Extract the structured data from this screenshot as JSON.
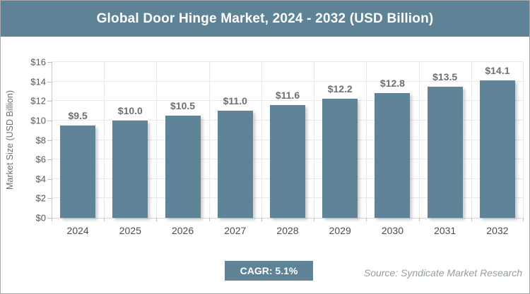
{
  "header": {
    "title": "Global Door Hinge Market, 2024 - 2032 (USD Billion)"
  },
  "chart_data": {
    "type": "bar",
    "title": "Global Door Hinge Market, 2024 - 2032 (USD Billion)",
    "categories": [
      "2024",
      "2025",
      "2026",
      "2027",
      "2028",
      "2029",
      "2030",
      "2031",
      "2032"
    ],
    "values": [
      9.5,
      10.0,
      10.5,
      11.0,
      11.6,
      12.2,
      12.8,
      13.5,
      14.1
    ],
    "bar_labels": [
      "$9.5",
      "$10.0",
      "$10.5",
      "$11.0",
      "$11.6",
      "$12.2",
      "$12.8",
      "$13.5",
      "$14.1"
    ],
    "xlabel": "",
    "ylabel": "Market Size (USD Billion)",
    "ylim": [
      0,
      16
    ],
    "ytick_step": 2,
    "ytick_labels": [
      "$0",
      "$2",
      "$4",
      "$6",
      "$8",
      "$10",
      "$12",
      "$14",
      "$16"
    ],
    "grid": true,
    "legend": "none",
    "bar_color": "#5f8397"
  },
  "footer": {
    "cagr_label": "CAGR: 5.1%",
    "source": "Source: Syndicate Market Research"
  },
  "colors": {
    "accent": "#5f8396",
    "bar": "#5f8397",
    "grid": "#e8e8e8",
    "axis_line": "#c6c6c6",
    "tick_text": "#595959",
    "bar_label_text": "#6f6f6f",
    "source_text": "#949ea3"
  }
}
